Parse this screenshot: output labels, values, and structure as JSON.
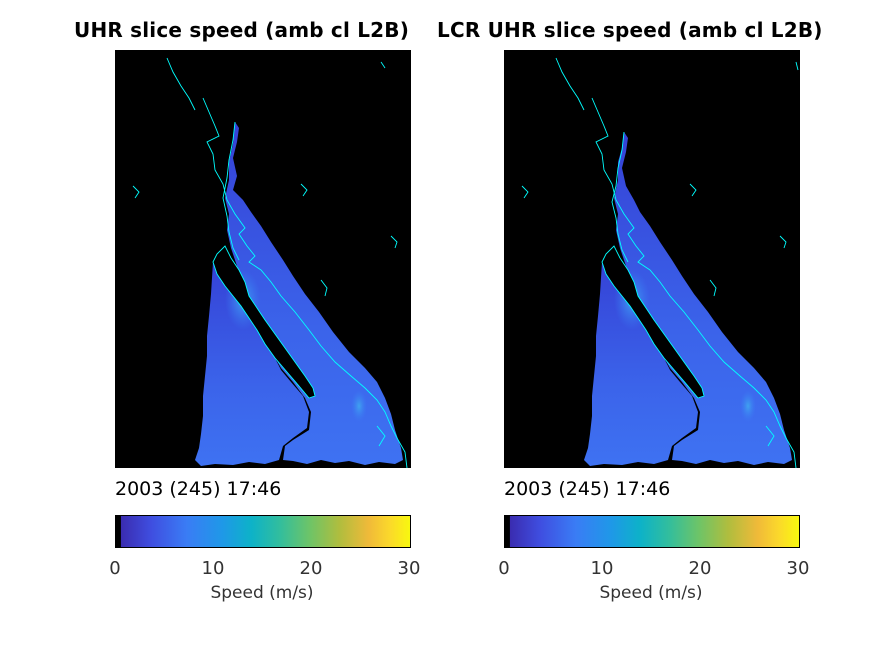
{
  "panels": [
    {
      "title": "UHR slice speed (amb cl L2B)",
      "timestamp": "2003 (245) 17:46",
      "colorbar": {
        "label": "Speed (m/s)",
        "ticks": [
          "0",
          "10",
          "20",
          "30"
        ],
        "range": [
          0,
          30
        ]
      }
    },
    {
      "title": "LCR UHR slice speed (amb cl L2B)",
      "timestamp": "2003 (245) 17:46",
      "colorbar": {
        "label": "Speed (m/s)",
        "ticks": [
          "0",
          "10",
          "20",
          "30"
        ],
        "range": [
          0,
          30
        ]
      }
    }
  ],
  "colors": {
    "background": "#000000",
    "coastline": "#00ffff",
    "wind_low": "#3f4ee0",
    "wind_mid": "#3a7cf5"
  }
}
